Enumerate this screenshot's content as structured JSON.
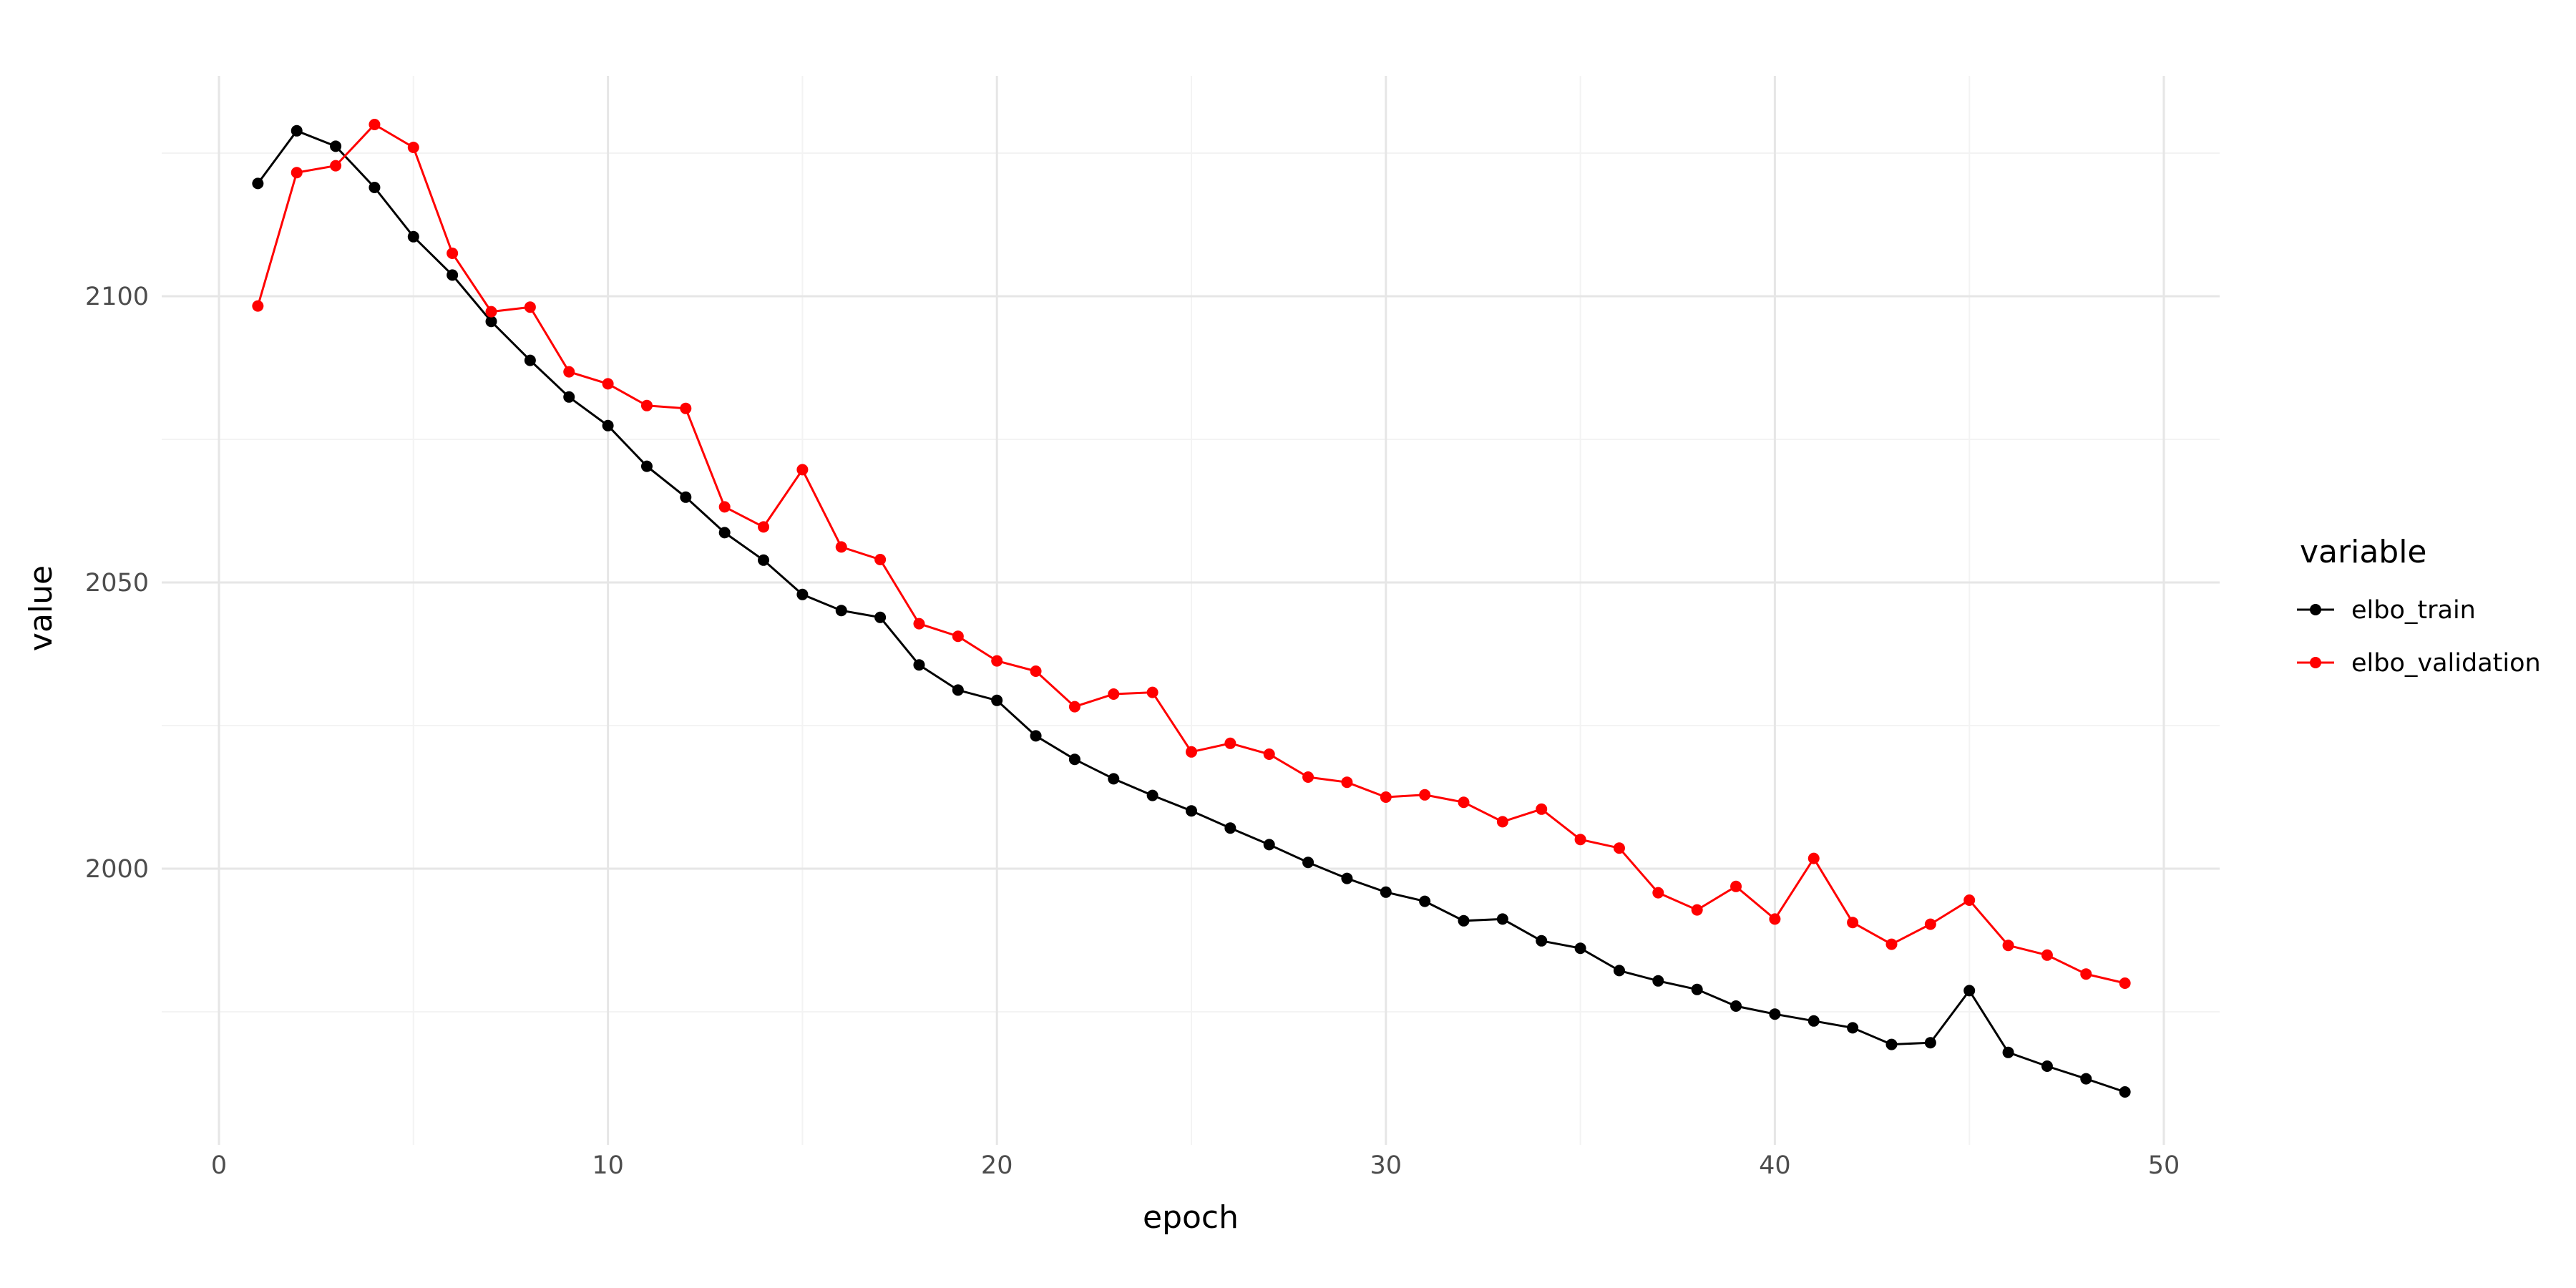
{
  "chart_data": {
    "type": "line",
    "xlabel": "epoch",
    "ylabel": "value",
    "xlim": [
      0,
      50
    ],
    "ylim": [
      1970,
      2126
    ],
    "x_ticks": [
      0,
      10,
      20,
      30,
      40,
      50
    ],
    "y_ticks": [
      2000,
      2050,
      2100
    ],
    "grid": true,
    "legend": {
      "title": "variable",
      "position": "right"
    },
    "x": [
      1,
      2,
      3,
      4,
      5,
      6,
      7,
      8,
      9,
      10,
      11,
      12,
      13,
      14,
      15,
      16,
      17,
      18,
      19,
      20,
      21,
      22,
      23,
      24,
      25,
      26,
      27,
      28,
      29,
      30,
      31,
      32,
      33,
      34,
      35,
      36,
      37,
      38,
      39,
      40,
      41,
      42,
      43,
      44,
      45,
      46,
      47,
      48,
      49
    ],
    "series": [
      {
        "name": "elbo_train",
        "color": "#000000",
        "values": [
          2119.7,
          2128.9,
          2126.2,
          2119.0,
          2110.4,
          2103.7,
          2095.6,
          2088.8,
          2082.4,
          2077.4,
          2070.3,
          2064.9,
          2058.7,
          2053.9,
          2047.9,
          2045.1,
          2043.9,
          2035.6,
          2031.2,
          2029.4,
          2023.2,
          2019.1,
          2015.7,
          2012.8,
          2010.1,
          2007.1,
          2004.2,
          2001.1,
          1998.3,
          1995.9,
          1994.3,
          1990.9,
          1991.2,
          1987.4,
          1986.1,
          1982.2,
          1980.4,
          1978.9,
          1976.0,
          1974.6,
          1973.4,
          1972.2,
          1969.3,
          1969.6,
          1978.7,
          1967.9,
          1965.5,
          1963.3,
          1961.0
        ]
      },
      {
        "name": "elbo_validation",
        "color": "#ff0000",
        "values": [
          2098.3,
          2121.6,
          2122.8,
          2130.0,
          2126.0,
          2107.5,
          2097.3,
          2098.1,
          2086.8,
          2084.7,
          2080.9,
          2080.4,
          2063.2,
          2059.7,
          2069.7,
          2056.2,
          2054.0,
          2042.8,
          2040.6,
          2036.3,
          2034.5,
          2028.3,
          2030.5,
          2030.8,
          2020.4,
          2021.9,
          2020.0,
          2016.0,
          2015.1,
          2012.5,
          2012.9,
          2011.6,
          2008.2,
          2010.4,
          2005.1,
          2003.6,
          1995.8,
          1992.8,
          1996.9,
          1991.2,
          2001.8,
          1990.6,
          1986.8,
          1990.3,
          1994.5,
          1986.6,
          1984.9,
          1981.6,
          1980.0
        ]
      }
    ]
  }
}
